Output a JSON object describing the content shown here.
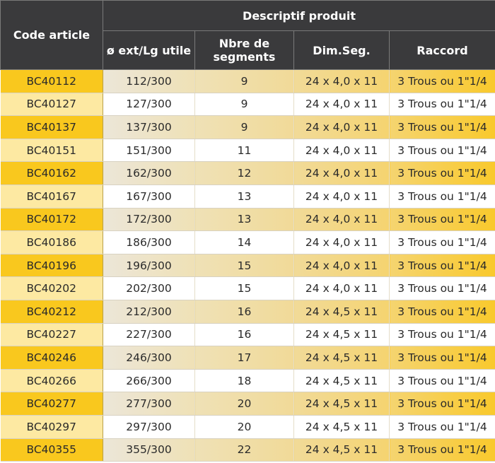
{
  "header": {
    "code_article": "Code article",
    "descriptif": "Descriptif produit",
    "ext_lg": "ø ext/Lg utile",
    "nbre": "Nbre de segments",
    "dimseg": "Dim.Seg.",
    "raccord": "Raccord"
  },
  "rows": [
    {
      "code": "BC40112",
      "ext": "112/300",
      "nb": "9",
      "dim": "24 x 4,0 x 11",
      "raccord": "3 Trous ou 1\"1/4"
    },
    {
      "code": "BC40127",
      "ext": "127/300",
      "nb": "9",
      "dim": "24 x 4,0 x 11",
      "raccord": "3 Trous ou 1\"1/4"
    },
    {
      "code": "BC40137",
      "ext": "137/300",
      "nb": "9",
      "dim": "24 x 4,0 x 11",
      "raccord": "3 Trous ou 1\"1/4"
    },
    {
      "code": "BC40151",
      "ext": "151/300",
      "nb": "11",
      "dim": "24 x 4,0 x 11",
      "raccord": "3 Trous ou 1\"1/4"
    },
    {
      "code": "BC40162",
      "ext": "162/300",
      "nb": "12",
      "dim": "24 x 4,0 x 11",
      "raccord": "3 Trous ou 1\"1/4"
    },
    {
      "code": "BC40167",
      "ext": "167/300",
      "nb": "13",
      "dim": "24 x 4,0 x 11",
      "raccord": "3 Trous ou 1\"1/4"
    },
    {
      "code": "BC40172",
      "ext": "172/300",
      "nb": "13",
      "dim": "24 x 4,0 x 11",
      "raccord": "3 Trous ou 1\"1/4"
    },
    {
      "code": "BC40186",
      "ext": "186/300",
      "nb": "14",
      "dim": "24 x 4,0 x 11",
      "raccord": "3 Trous ou 1\"1/4"
    },
    {
      "code": "BC40196",
      "ext": "196/300",
      "nb": "15",
      "dim": "24 x 4,0 x 11",
      "raccord": "3 Trous ou 1\"1/4"
    },
    {
      "code": "BC40202",
      "ext": "202/300",
      "nb": "15",
      "dim": "24 x 4,0 x 11",
      "raccord": "3 Trous ou 1\"1/4"
    },
    {
      "code": "BC40212",
      "ext": "212/300",
      "nb": "16",
      "dim": "24 x 4,5 x 11",
      "raccord": "3 Trous ou 1\"1/4"
    },
    {
      "code": "BC40227",
      "ext": "227/300",
      "nb": "16",
      "dim": "24 x 4,5 x 11",
      "raccord": "3 Trous ou 1\"1/4"
    },
    {
      "code": "BC40246",
      "ext": "246/300",
      "nb": "17",
      "dim": "24 x 4,5 x 11",
      "raccord": "3 Trous ou 1\"1/4"
    },
    {
      "code": "BC40266",
      "ext": "266/300",
      "nb": "18",
      "dim": "24 x 4,5 x 11",
      "raccord": "3 Trous ou 1\"1/4"
    },
    {
      "code": "BC40277",
      "ext": "277/300",
      "nb": "20",
      "dim": "24 x 4,5 x 11",
      "raccord": "3 Trous ou 1\"1/4"
    },
    {
      "code": "BC40297",
      "ext": "297/300",
      "nb": "20",
      "dim": "24 x 4,5 x 11",
      "raccord": "3 Trous ou 1\"1/4"
    },
    {
      "code": "BC40355",
      "ext": "355/300",
      "nb": "22",
      "dim": "24 x 4,5 x 11",
      "raccord": "3 Trous ou 1\"1/4"
    }
  ]
}
